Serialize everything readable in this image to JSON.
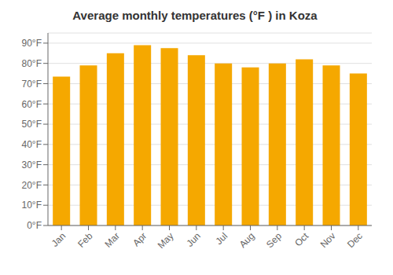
{
  "chart_data": {
    "type": "bar",
    "title": "Average monthly temperatures (°F ) in Koza",
    "categories": [
      "Jan",
      "Feb",
      "Mar",
      "Apr",
      "May",
      "Jun",
      "Jul",
      "Aug",
      "Sep",
      "Oct",
      "Nov",
      "Dec"
    ],
    "values": [
      73.5,
      79.0,
      85.0,
      89.0,
      87.5,
      84.0,
      80.0,
      78.0,
      80.0,
      82.0,
      79.0,
      75.0
    ],
    "color": "#F5A800",
    "ylim": [
      0,
      95
    ],
    "yticks": [
      {
        "value": 0,
        "label": "0°F"
      },
      {
        "value": 10,
        "label": "10°F"
      },
      {
        "value": 20,
        "label": "20°F"
      },
      {
        "value": 30,
        "label": "30°F"
      },
      {
        "value": 40,
        "label": "40°F"
      },
      {
        "value": 50,
        "label": "50°F"
      },
      {
        "value": 60,
        "label": "60°F"
      },
      {
        "value": 70,
        "label": "70°F"
      },
      {
        "value": 80,
        "label": "80°F"
      },
      {
        "value": 90,
        "label": "90°F"
      }
    ],
    "grid": true
  }
}
